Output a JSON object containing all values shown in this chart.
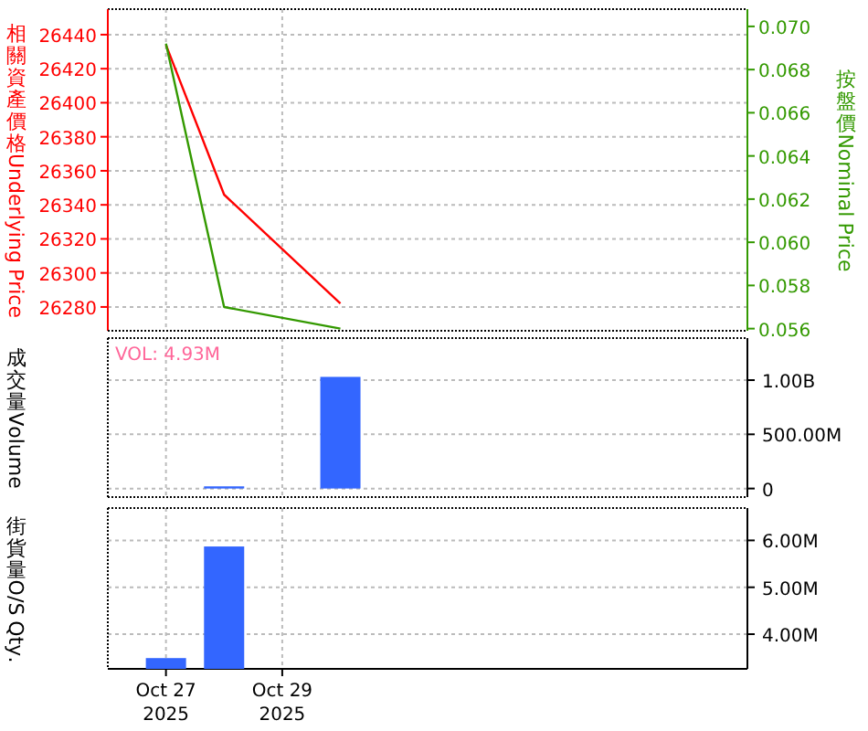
{
  "chart_data": [
    {
      "type": "line",
      "ylabel": "相關資產價格Underlying Price",
      "y2label": "按盤價Nominal Price",
      "series": [
        {
          "color": "#ff0000",
          "axis": "y",
          "x": [
            "2025-10-27",
            "2025-10-28",
            "2025-10-30"
          ],
          "values": [
            26434,
            26346,
            26282
          ]
        },
        {
          "color": "#339900",
          "axis": "y2",
          "x": [
            "2025-10-27",
            "2025-10-28",
            "2025-10-30"
          ],
          "values": [
            0.0692,
            0.057,
            0.056
          ]
        }
      ],
      "xlim": [
        "2025-10-26",
        "2025-11-06"
      ],
      "ylim": [
        26266,
        26455
      ],
      "yticks": [
        26280,
        26300,
        26320,
        26340,
        26360,
        26380,
        26400,
        26420,
        26440
      ],
      "y2lim": [
        0.0559,
        0.0708
      ],
      "y2ticks": [
        {
          "value": 0.056,
          "label": "0.056"
        },
        {
          "value": 0.058,
          "label": "0.058"
        },
        {
          "value": 0.06,
          "label": "0.060"
        },
        {
          "value": 0.062,
          "label": "0.062"
        },
        {
          "value": 0.064,
          "label": "0.064"
        },
        {
          "value": 0.066,
          "label": "0.066"
        },
        {
          "value": 0.068,
          "label": "0.068"
        },
        {
          "value": 0.07,
          "label": "0.070"
        }
      ],
      "grid": true,
      "tick_labels": "y"
    },
    {
      "type": "bar",
      "ylabel": "成交量Volume",
      "annotations": [
        "VOL: 4.93M"
      ],
      "x": [
        "2025-10-28",
        "2025-10-30"
      ],
      "values": [
        20000000,
        1030000000
      ],
      "color": "#3366ff",
      "xlim": [
        "2025-10-26",
        "2025-11-06"
      ],
      "ylim": [
        -79000000,
        1388000000
      ],
      "yticks": [
        0,
        {
          "value": 500000000,
          "label": "500.00M"
        },
        {
          "value": 1000000000,
          "label": "1.00B"
        }
      ],
      "grid": true,
      "tick_labels": "y"
    },
    {
      "type": "bar",
      "ylabel": "街貨量O/S Qty.",
      "x": [
        "2025-10-27",
        "2025-10-28"
      ],
      "values": [
        3490000,
        5870000
      ],
      "color": "#3366ff",
      "xlim": [
        "2025-10-26",
        "2025-11-06"
      ],
      "xticks": [
        {
          "value": "2025-10-27",
          "label": "Oct 27 2025"
        },
        {
          "value": "2025-10-29",
          "label": "Oct 29 2025"
        }
      ],
      "ylim": [
        3260000,
        6690000
      ],
      "yticks": [
        {
          "value": 4000000,
          "label": "4.00M"
        },
        {
          "value": 5000000,
          "label": "5.00M"
        },
        {
          "value": 6000000,
          "label": "6.00M"
        }
      ],
      "grid": true
    }
  ]
}
